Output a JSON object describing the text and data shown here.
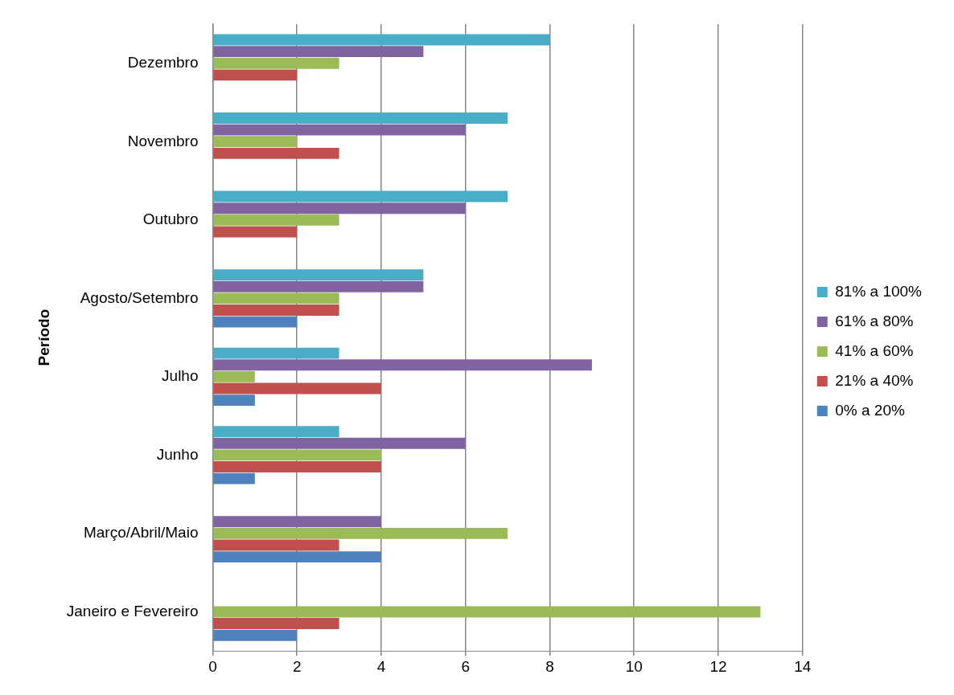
{
  "chart_data": {
    "type": "bar",
    "orientation": "horizontal",
    "ylabel": "Período",
    "categories": [
      "Dezembro",
      "Novembro",
      "Outubro",
      "Agosto/Setembro",
      "Julho",
      "Junho",
      "Março/Abril/Maio",
      "Janeiro e Fevereiro"
    ],
    "series": [
      {
        "name": "81% a 100%",
        "color": "#4bacc6",
        "values": [
          8,
          7,
          7,
          5,
          3,
          3,
          null,
          null
        ]
      },
      {
        "name": "61% a 80%",
        "color": "#8064a2",
        "values": [
          5,
          6,
          6,
          5,
          9,
          6,
          4,
          null
        ]
      },
      {
        "name": "41% a 60%",
        "color": "#9bbb59",
        "values": [
          3,
          2,
          3,
          3,
          1,
          4,
          7,
          13
        ]
      },
      {
        "name": "21% a 40%",
        "color": "#c0504d",
        "values": [
          2,
          3,
          2,
          3,
          4,
          4,
          3,
          3
        ]
      },
      {
        "name": "0% a 20%",
        "color": "#4f81bd",
        "values": [
          null,
          null,
          null,
          2,
          1,
          1,
          4,
          2
        ]
      }
    ],
    "xlim": [
      0,
      14
    ],
    "xticks": [
      0,
      2,
      4,
      6,
      8,
      10,
      12,
      14
    ],
    "grid": "x",
    "legend": "right"
  }
}
